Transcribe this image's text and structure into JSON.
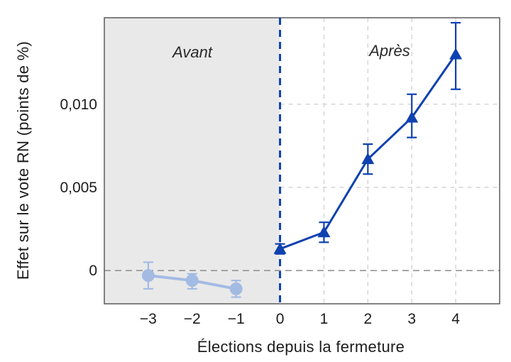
{
  "chart_data": {
    "type": "line",
    "title": "",
    "xlabel": "Élections depuis la fermeture",
    "ylabel": "Effet sur le vote RN (points de %)",
    "region_labels": {
      "before": "Avant",
      "after": "Après"
    },
    "xlim": [
      -4,
      5
    ],
    "ylim": [
      -0.002,
      0.0152
    ],
    "x_ticks": {
      "values": [
        -3,
        -2,
        -1,
        0,
        1,
        2,
        3,
        4
      ],
      "labels": [
        "−3",
        "−2",
        "−1",
        "0",
        "1",
        "2",
        "3",
        "4"
      ]
    },
    "y_ticks": {
      "values": [
        0,
        0.005,
        0.01
      ],
      "labels": [
        "0",
        "0,005",
        "0,010"
      ]
    },
    "grid": "dashed",
    "legend_position": "none",
    "zero_line_y": 0,
    "treatment_line_x": 0,
    "shaded_region_x": [
      -4,
      0
    ],
    "series": [
      {
        "name": "Avant",
        "marker": "circle",
        "x": [
          -3,
          -2,
          -1
        ],
        "y": [
          -0.0003,
          -0.0006,
          -0.0011
        ],
        "ci_low": [
          -0.0011,
          -0.0011,
          -0.0016
        ],
        "ci_high": [
          0.0005,
          -0.0002,
          -0.0006
        ]
      },
      {
        "name": "Après",
        "marker": "triangle",
        "x": [
          0,
          1,
          2,
          3,
          4
        ],
        "y": [
          0.0013,
          0.0023,
          0.0067,
          0.0092,
          0.013
        ],
        "ci_low": [
          0.001,
          0.0017,
          0.0058,
          0.008,
          0.0109
        ],
        "ci_high": [
          0.0016,
          0.0029,
          0.0076,
          0.0106,
          0.0149
        ]
      }
    ]
  },
  "colors": {
    "before_series": "#a3bbe3",
    "after_series": "#0f41b0",
    "shaded_region": "#e9e9e9",
    "grid_line": "#d3d3d3",
    "zero_line": "#949494",
    "plot_border": "#5a5a5a",
    "tick_text": "#1c1c1c",
    "background": "#ffffff"
  }
}
